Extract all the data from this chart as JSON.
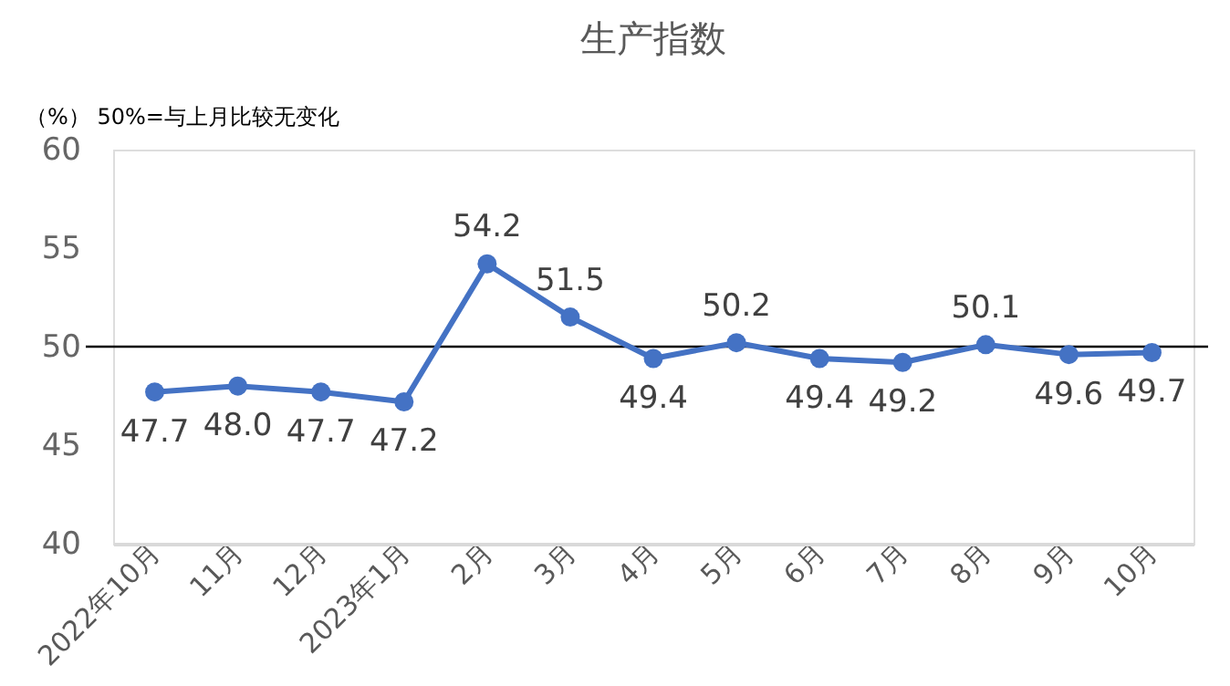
{
  "chart_data": {
    "type": "line",
    "title": "生产指数",
    "annotations": [
      "（%）  50%=与上月比较无变化"
    ],
    "categories": [
      "2022年10月",
      "11月",
      "12月",
      "2023年1月",
      "2月",
      "3月",
      "4月",
      "5月",
      "6月",
      "7月",
      "8月",
      "9月",
      "10月"
    ],
    "series": [
      {
        "color": "#4472c4",
        "values": [
          47.7,
          48.0,
          47.7,
          47.2,
          54.2,
          51.5,
          49.4,
          50.2,
          49.4,
          49.2,
          50.1,
          49.6,
          49.7
        ]
      }
    ],
    "ylim": [
      40,
      60
    ],
    "yticks": [
      40,
      45,
      50,
      55,
      60
    ],
    "grid": false,
    "marker": "circle",
    "line_style": "solid",
    "value_labels": [
      "47.7",
      "48.0",
      "47.7",
      "47.2",
      "54.2",
      "51.5",
      "49.4",
      "50.2",
      "49.4",
      "49.2",
      "50.1",
      "49.6",
      "49.7"
    ],
    "ref_lines": [
      {
        "axis": "y",
        "value": 50,
        "color": "#000000"
      }
    ]
  }
}
